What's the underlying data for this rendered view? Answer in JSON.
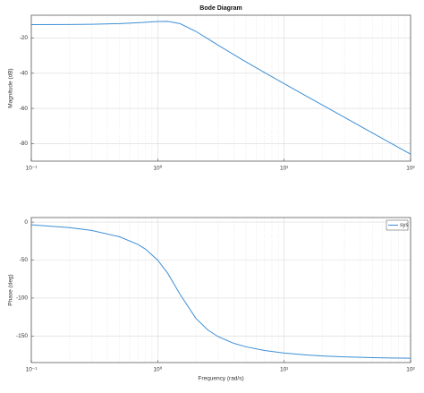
{
  "chart_data": [
    {
      "type": "line",
      "title": "Bode Diagram",
      "ylabel": "Magnitude (dB)",
      "log_x": true,
      "grid": true,
      "minor_grid": true,
      "xlim": [
        0.1,
        100
      ],
      "xticks": [
        {
          "value": 0.1,
          "label": "10⁻¹"
        },
        {
          "value": 1,
          "label": "10⁰"
        },
        {
          "value": 10,
          "label": "10¹"
        },
        {
          "value": 100,
          "label": "10²"
        }
      ],
      "ylim": [
        -90,
        -7
      ],
      "yticks": [
        -20,
        -40,
        -60,
        -80
      ],
      "x": [
        0.1,
        0.2,
        0.3,
        0.5,
        0.7,
        0.8,
        1,
        1.2,
        1.5,
        2,
        2.5,
        3,
        4,
        5,
        7,
        10,
        15,
        20,
        30,
        50,
        70,
        100
      ],
      "series": [
        {
          "color": "#3d8fd6",
          "values": [
            -12.36,
            -12.28,
            -12.16,
            -11.78,
            -11.26,
            -10.99,
            -10.54,
            -10.5,
            -11.79,
            -16.17,
            -20.46,
            -24.0,
            -29.45,
            -33.56,
            -39.61,
            -45.91,
            -53.02,
            -58.03,
            -65.09,
            -73.97,
            -79.82,
            -86.02
          ]
        }
      ]
    },
    {
      "type": "line",
      "xlabel": "Frequency (rad/s)",
      "ylabel": "Phase (deg)",
      "log_x": true,
      "grid": true,
      "minor_grid": true,
      "legend": "upper right",
      "xlim": [
        0.1,
        100
      ],
      "xticks": [
        {
          "value": 0.1,
          "label": "10⁻¹"
        },
        {
          "value": 1,
          "label": "10⁰"
        },
        {
          "value": 10,
          "label": "10¹"
        },
        {
          "value": 100,
          "label": "10²"
        }
      ],
      "ylim": [
        -185,
        6
      ],
      "yticks": [
        0,
        -50,
        -100,
        -150
      ],
      "x": [
        0.1,
        0.2,
        0.3,
        0.5,
        0.7,
        0.8,
        1,
        1.2,
        1.5,
        2,
        2.5,
        3,
        4,
        5,
        7,
        10,
        15,
        20,
        30,
        50,
        70,
        100
      ],
      "series": [
        {
          "name": "sys",
          "color": "#3d8fd6",
          "values": [
            -3.57,
            -7.21,
            -11.0,
            -19.4,
            -29.6,
            -35.6,
            -50.1,
            -67.5,
            -95.0,
            -126.7,
            -142.3,
            -150.8,
            -159.7,
            -164.3,
            -169.1,
            -172.5,
            -175.0,
            -176.3,
            -177.5,
            -178.5,
            -178.9,
            -179.3
          ]
        }
      ]
    }
  ]
}
